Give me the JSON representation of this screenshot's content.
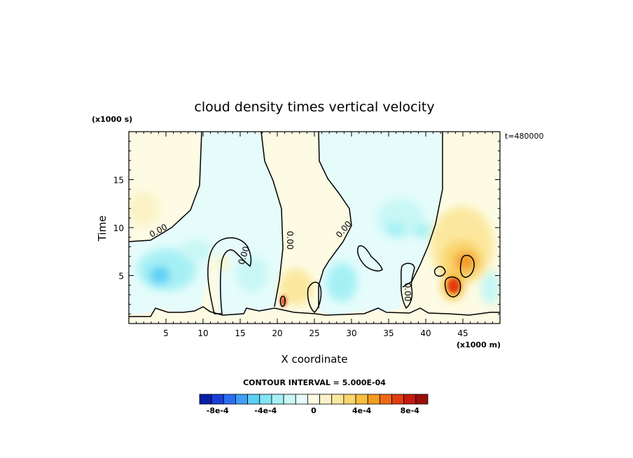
{
  "chart_data": {
    "type": "heatmap",
    "title": "cloud density times vertical velocity",
    "xlabel": "X coordinate",
    "ylabel": "Time",
    "x_unit": "(x1000 m)",
    "y_unit": "(x1000 s)",
    "time_label": "t=480000",
    "xlim": [
      0,
      50
    ],
    "ylim": [
      0,
      20
    ],
    "x_ticks": [
      5,
      10,
      15,
      20,
      25,
      30,
      35,
      40,
      45
    ],
    "y_ticks": [
      5,
      10,
      15
    ],
    "contour_interval_text": "CONTOUR INTERVAL = 5.000E-04",
    "zero_contour_label": "0.00",
    "colorbar": {
      "levels": [
        -0.0009,
        -0.0008,
        -0.0007,
        -0.0006,
        -0.0005,
        -0.0004,
        -0.0003,
        -0.0002,
        -0.0001,
        0,
        0.0001,
        0.0002,
        0.0003,
        0.0004,
        0.0005,
        0.0006,
        0.0007,
        0.0008,
        0.0009
      ],
      "colors": [
        "#0a1fa8",
        "#1a3fd8",
        "#2a6ff0",
        "#3f9ff5",
        "#5ccff5",
        "#80e5f5",
        "#a6f0f5",
        "#c8f7f5",
        "#e5fcfb",
        "#fdfbe3",
        "#fbf3c6",
        "#fbe89e",
        "#f9d66e",
        "#f7bf3e",
        "#f59b20",
        "#ee6a14",
        "#e03c10",
        "#c41a10",
        "#9a0f0a"
      ],
      "tick_labels": [
        "-8e-4",
        "-4e-4",
        "0",
        "4e-4",
        "8e-4"
      ],
      "tick_values": [
        -0.0008,
        -0.0004,
        0,
        0.0004,
        0.0008
      ]
    }
  }
}
